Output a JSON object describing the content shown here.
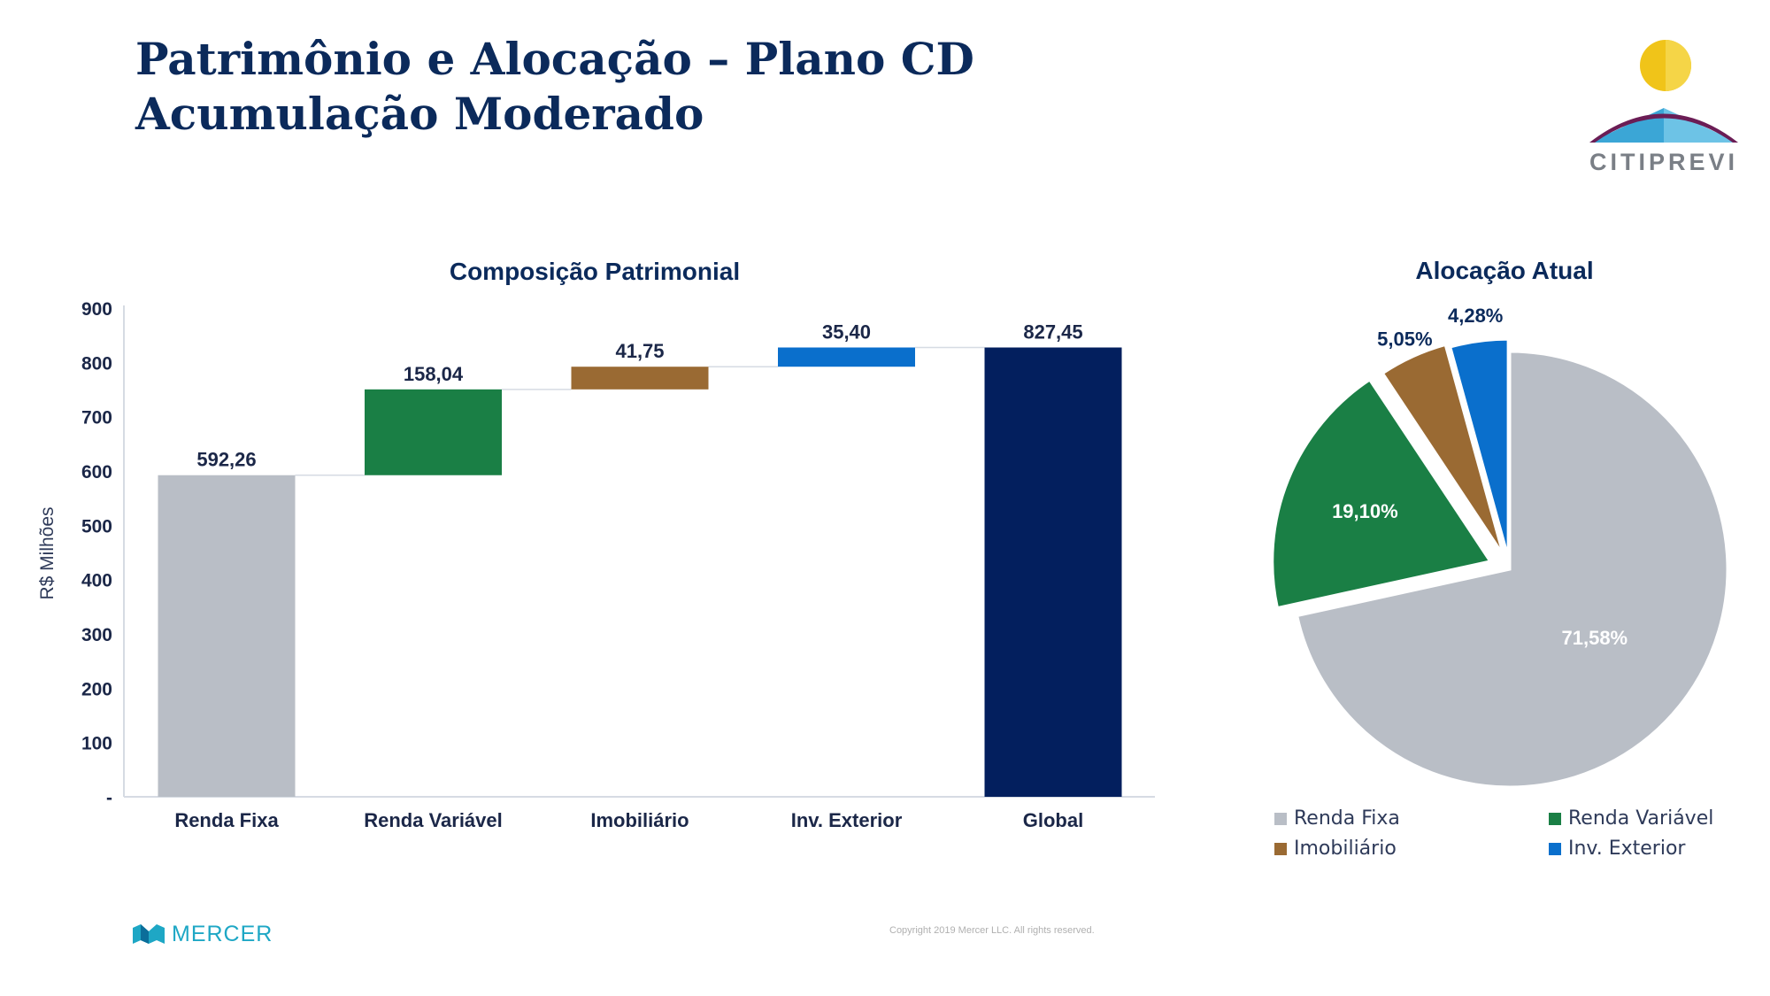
{
  "page": {
    "title": "Patrimônio e Alocação – Plano CD Acumulação Moderado",
    "logo_text": "CITIPREVI",
    "footer_brand": "MERCER",
    "copyright": "Copyright 2019 Mercer LLC. All rights reserved."
  },
  "colors": {
    "title": "#0b2a5b",
    "renda_fixa": "#b9bec6",
    "renda_variavel": "#1a7f45",
    "imobiliario": "#9a6a33",
    "inv_exterior": "#0a6fcc",
    "global": "#031f5e"
  },
  "chart_data": [
    {
      "type": "bar",
      "subtype": "waterfall",
      "title": "Composição Patrimonial",
      "ylabel": "R$ Milhões",
      "xlabel": "",
      "ylim": [
        0,
        900
      ],
      "yticks": [
        0,
        100,
        200,
        300,
        400,
        500,
        600,
        700,
        800,
        900
      ],
      "ytick_labels": [
        "-",
        "100",
        "200",
        "300",
        "400",
        "500",
        "600",
        "700",
        "800",
        "900"
      ],
      "categories": [
        "Renda Fixa",
        "Renda Variável",
        "Imobiliário",
        "Inv. Exterior",
        "Global"
      ],
      "values": [
        592.26,
        158.04,
        41.75,
        35.4,
        827.45
      ],
      "bases": [
        0,
        592.26,
        750.3,
        792.05,
        0
      ],
      "data_labels": [
        "592,26",
        "158,04",
        "41,75",
        "35,40",
        "827,45"
      ],
      "bar_colors": [
        "#b9bec6",
        "#1a7f45",
        "#9a6a33",
        "#0a6fcc",
        "#031f5e"
      ],
      "grid": false
    },
    {
      "type": "pie",
      "title": "Alocação Atual",
      "categories": [
        "Renda Fixa",
        "Renda Variável",
        "Imobiliário",
        "Inv. Exterior"
      ],
      "values": [
        71.58,
        19.1,
        5.05,
        4.28
      ],
      "data_labels": [
        "71,58%",
        "19,10%",
        "5,05%",
        "4,28%"
      ],
      "slice_colors": [
        "#b9bec6",
        "#1a7f45",
        "#9a6a33",
        "#0a6fcc"
      ],
      "exploded": true,
      "legend": "bottom"
    }
  ]
}
